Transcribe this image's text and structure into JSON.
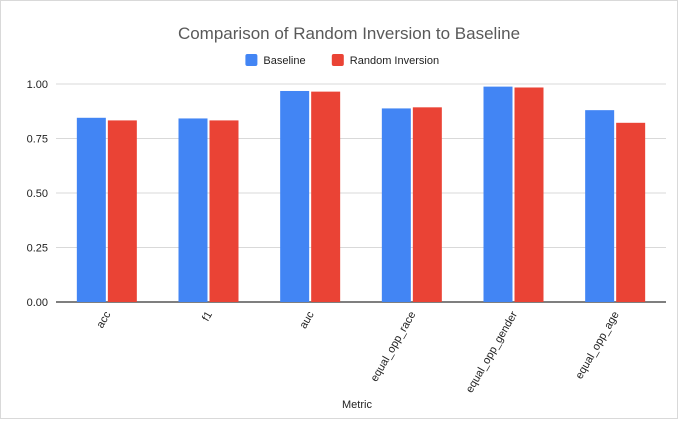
{
  "chart_data": {
    "type": "bar",
    "title": "Comparison of Random Inversion to Baseline",
    "xlabel": "Metric",
    "ylabel": "",
    "categories": [
      "acc",
      "f1",
      "auc",
      "equal_opp_race",
      "equal_opp_gender",
      "equal_opp_age"
    ],
    "series": [
      {
        "name": "Baseline",
        "color": "#4285f4",
        "values": [
          0.845,
          0.842,
          0.968,
          0.888,
          0.988,
          0.88
        ]
      },
      {
        "name": "Random Inversion",
        "color": "#ea4335",
        "values": [
          0.833,
          0.833,
          0.965,
          0.893,
          0.984,
          0.822
        ]
      }
    ],
    "ylim": [
      0,
      1
    ],
    "yticks": [
      "0.00",
      "0.25",
      "0.50",
      "0.75",
      "1.00"
    ],
    "grid": true,
    "legend_position": "top-center"
  }
}
